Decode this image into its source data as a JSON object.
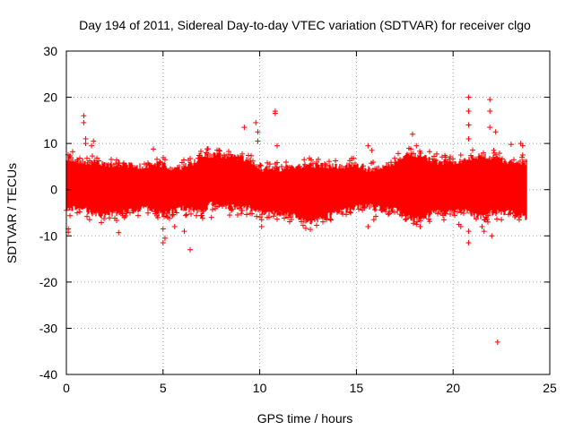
{
  "chart_data": {
    "type": "scatter",
    "title": "Day 194 of 2011, Sidereal Day-to-day VTEC variation (SDTVAR) for receiver clgo",
    "xlabel": "GPS time / hours",
    "ylabel": "SDTVAR / TECUs",
    "xlim": [
      0,
      25
    ],
    "ylim": [
      -40,
      30
    ],
    "xticks": [
      0,
      5,
      10,
      15,
      20,
      25
    ],
    "xtick_labels": [
      "0",
      "5",
      "10",
      "15",
      "20",
      "25"
    ],
    "yticks": [
      -40,
      -30,
      -20,
      -10,
      0,
      10,
      20,
      30
    ],
    "ytick_labels": [
      "-40",
      "-30",
      "-20",
      "-10",
      "0",
      "10",
      "20",
      "30"
    ],
    "grid": true,
    "marker": "+",
    "series_color": "#ff0000",
    "data_span_hours": [
      0,
      23.8
    ],
    "band_envelope": {
      "t": [
        0,
        0.3,
        1.0,
        1.5,
        2.0,
        3.0,
        4.0,
        5.0,
        5.3,
        6.0,
        6.5,
        7.0,
        7.5,
        8.0,
        9.0,
        9.5,
        10.0,
        10.5,
        11.0,
        12.0,
        12.5,
        13.0,
        14.0,
        15.0,
        15.5,
        16.0,
        17.0,
        17.5,
        18.0,
        18.5,
        19.0,
        20.0,
        20.5,
        21.0,
        21.5,
        22.0,
        22.5,
        23.0,
        23.8
      ],
      "upper": [
        7,
        6.5,
        6,
        6,
        5.5,
        5.5,
        5,
        5.5,
        4.5,
        5,
        5.5,
        7.5,
        7.5,
        7.5,
        7,
        6.5,
        4.5,
        4.5,
        4.5,
        5,
        5,
        5.5,
        5,
        5.5,
        4.5,
        4.5,
        6,
        7.5,
        7.5,
        7,
        6,
        6,
        6,
        7,
        7.5,
        7,
        6.5,
        6,
        6
      ],
      "lower": [
        -4,
        -4,
        -4.5,
        -5.5,
        -5.5,
        -5,
        -4,
        -5.5,
        -5,
        -4,
        -4.5,
        -5,
        -3,
        -3.5,
        -4,
        -4,
        -5,
        -5,
        -5,
        -6,
        -7,
        -6.5,
        -5,
        -4,
        -3.5,
        -4,
        -4.5,
        -5.5,
        -6.5,
        -6,
        -5,
        -5,
        -4.5,
        -5.5,
        -6,
        -5,
        -5,
        -5,
        -6
      ]
    },
    "outliers": [
      {
        "t": 0.1,
        "v": -8.5
      },
      {
        "t": 0.1,
        "v": -9.2
      },
      {
        "t": 0.9,
        "v": 16
      },
      {
        "t": 0.9,
        "v": 14.5
      },
      {
        "t": 1.0,
        "v": 10
      },
      {
        "t": 1.0,
        "v": 11
      },
      {
        "t": 1.2,
        "v": -6.5
      },
      {
        "t": 1.3,
        "v": 9.5
      },
      {
        "t": 1.4,
        "v": 10.5
      },
      {
        "t": 2.7,
        "v": -9.3
      },
      {
        "t": 3.0,
        "v": -6
      },
      {
        "t": 4.5,
        "v": 8.8
      },
      {
        "t": 5.0,
        "v": -8.5
      },
      {
        "t": 5.0,
        "v": -11.5
      },
      {
        "t": 5.1,
        "v": -10.5
      },
      {
        "t": 5.1,
        "v": 6.5
      },
      {
        "t": 5.6,
        "v": -8
      },
      {
        "t": 6.1,
        "v": -9
      },
      {
        "t": 6.4,
        "v": -13
      },
      {
        "t": 7.5,
        "v": -6
      },
      {
        "t": 9.2,
        "v": 13.5
      },
      {
        "t": 9.8,
        "v": 14.5
      },
      {
        "t": 9.9,
        "v": 12.5
      },
      {
        "t": 9.9,
        "v": 10.5
      },
      {
        "t": 10.1,
        "v": -8
      },
      {
        "t": 10.1,
        "v": -6.5
      },
      {
        "t": 10.8,
        "v": 17
      },
      {
        "t": 10.8,
        "v": 16.5
      },
      {
        "t": 10.9,
        "v": 9.5
      },
      {
        "t": 12.3,
        "v": 6.5
      },
      {
        "t": 15.6,
        "v": -8
      },
      {
        "t": 15.6,
        "v": 9.5
      },
      {
        "t": 15.8,
        "v": 8.5
      },
      {
        "t": 15.9,
        "v": -6.5
      },
      {
        "t": 17.9,
        "v": 12
      },
      {
        "t": 18.1,
        "v": 9.5
      },
      {
        "t": 18.1,
        "v": -7.5
      },
      {
        "t": 18.3,
        "v": -8
      },
      {
        "t": 20.3,
        "v": -7.5
      },
      {
        "t": 20.4,
        "v": -8
      },
      {
        "t": 20.4,
        "v": 7.5
      },
      {
        "t": 20.8,
        "v": 20
      },
      {
        "t": 20.8,
        "v": 17
      },
      {
        "t": 20.8,
        "v": 14
      },
      {
        "t": 20.8,
        "v": 11
      },
      {
        "t": 20.8,
        "v": -11.5
      },
      {
        "t": 20.8,
        "v": -9
      },
      {
        "t": 21.5,
        "v": -8
      },
      {
        "t": 21.6,
        "v": -9
      },
      {
        "t": 21.8,
        "v": -7
      },
      {
        "t": 21.9,
        "v": 19.5
      },
      {
        "t": 21.9,
        "v": 17
      },
      {
        "t": 21.9,
        "v": 13.5
      },
      {
        "t": 22.0,
        "v": -10
      },
      {
        "t": 22.1,
        "v": 8.5
      },
      {
        "t": 22.2,
        "v": 12.5
      },
      {
        "t": 22.3,
        "v": -33
      },
      {
        "t": 22.5,
        "v": -6.5
      },
      {
        "t": 23.0,
        "v": 9.8
      },
      {
        "t": 23.5,
        "v": 10
      },
      {
        "t": 23.6,
        "v": 9.5
      },
      {
        "t": 23.6,
        "v": 7.5
      }
    ]
  }
}
